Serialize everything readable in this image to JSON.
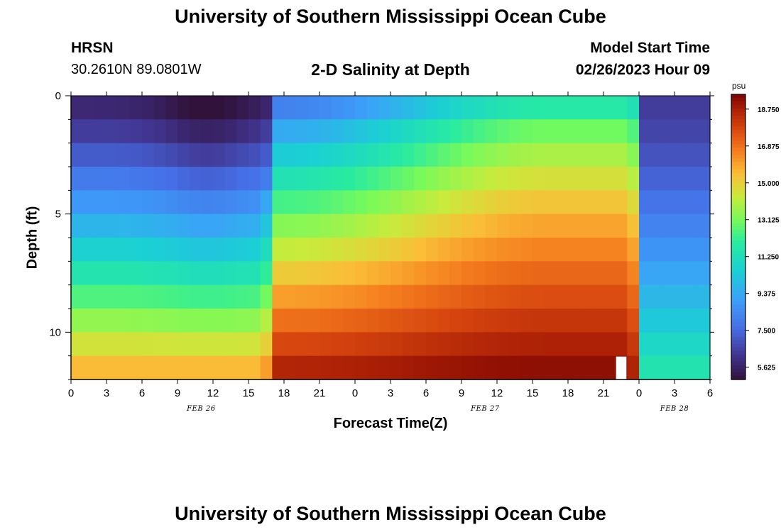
{
  "title": "University of Southern Mississippi Ocean Cube",
  "title_repeat": "University of Southern Mississippi Ocean Cube",
  "station": {
    "name": "HRSN",
    "coords": "30.2610N  89.0801W"
  },
  "plot_title": "2-D Salinity at Depth",
  "model": {
    "label": "Model Start Time",
    "value": "02/26/2023 Hour 09"
  },
  "chart_data": {
    "type": "heatmap",
    "title": "2-D Salinity at Depth",
    "xlabel": "Forecast Time(Z)",
    "ylabel": "Depth (ft)",
    "x_tick_labels": [
      "0",
      "3",
      "6",
      "9",
      "12",
      "15",
      "18",
      "21",
      "0",
      "3",
      "6",
      "9",
      "12",
      "15",
      "18",
      "21",
      "0",
      "3",
      "6"
    ],
    "date_labels": [
      {
        "text": "FEB 26",
        "hour_index": 11
      },
      {
        "text": "FEB 27",
        "hour_index": 35
      },
      {
        "text": "FEB 28",
        "hour_index": 51
      }
    ],
    "x_range_hours": [
      0,
      54
    ],
    "y_ticks": [
      0,
      5,
      10
    ],
    "y_range_ft": [
      0,
      12
    ],
    "depth_levels": 12,
    "hours": 54,
    "missing_cell": {
      "hour": 46,
      "depth_level": 11
    },
    "colorbar": {
      "unit": "psu",
      "min": 5.0,
      "max": 19.5,
      "ticks": [
        "18.750",
        "16.875",
        "15.000",
        "13.125",
        "11.250",
        "9.375",
        "7.500",
        "5.625"
      ]
    }
  }
}
